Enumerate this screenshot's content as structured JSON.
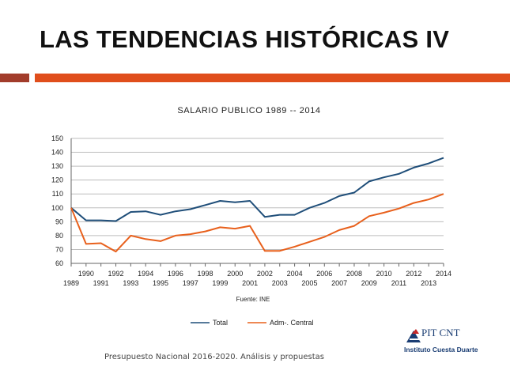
{
  "slide": {
    "title": "LAS TENDENCIAS HISTÓRICAS IV",
    "footer": "Presupuesto Nacional  2016-2020. Análisis y propuestas",
    "logo_name": "PIT CNT",
    "logo_subtitle": "Instituto Cuesta Duarte"
  },
  "colors": {
    "rule_dark": "#a23c2b",
    "rule_orange": "#e04e1c",
    "total": "#1f4e79",
    "central": "#e8601c"
  },
  "chart_data": {
    "type": "line",
    "title": "SALARIO PUBLICO 1989  --  2014",
    "source": "Fuente: INE",
    "x": [
      1989,
      1990,
      1991,
      1992,
      1993,
      1994,
      1995,
      1996,
      1997,
      1998,
      1999,
      2000,
      2001,
      2002,
      2003,
      2004,
      2005,
      2006,
      2007,
      2008,
      2009,
      2010,
      2011,
      2012,
      2013,
      2014
    ],
    "series": [
      {
        "name": "Total",
        "color": "#1f4e79",
        "values": [
          100,
          91,
          91,
          90.5,
          97,
          97.5,
          95,
          97.5,
          99,
          102,
          105,
          104,
          105,
          93.5,
          95,
          95,
          100,
          103.5,
          108.5,
          111,
          119,
          122,
          124.5,
          129,
          132,
          136
        ]
      },
      {
        "name": "Adm-. Central",
        "color": "#e8601c",
        "values": [
          100,
          74,
          74.5,
          68.5,
          80,
          77.5,
          76,
          80,
          81,
          83,
          86,
          85,
          87,
          69,
          69,
          72,
          75.5,
          79,
          84,
          87,
          94,
          96.5,
          99.5,
          103.5,
          106,
          110
        ]
      }
    ],
    "ylim": [
      60,
      150
    ],
    "yticks": [
      60,
      70,
      80,
      90,
      100,
      110,
      120,
      130,
      140,
      150
    ],
    "legend": "bottom",
    "grid": true
  }
}
